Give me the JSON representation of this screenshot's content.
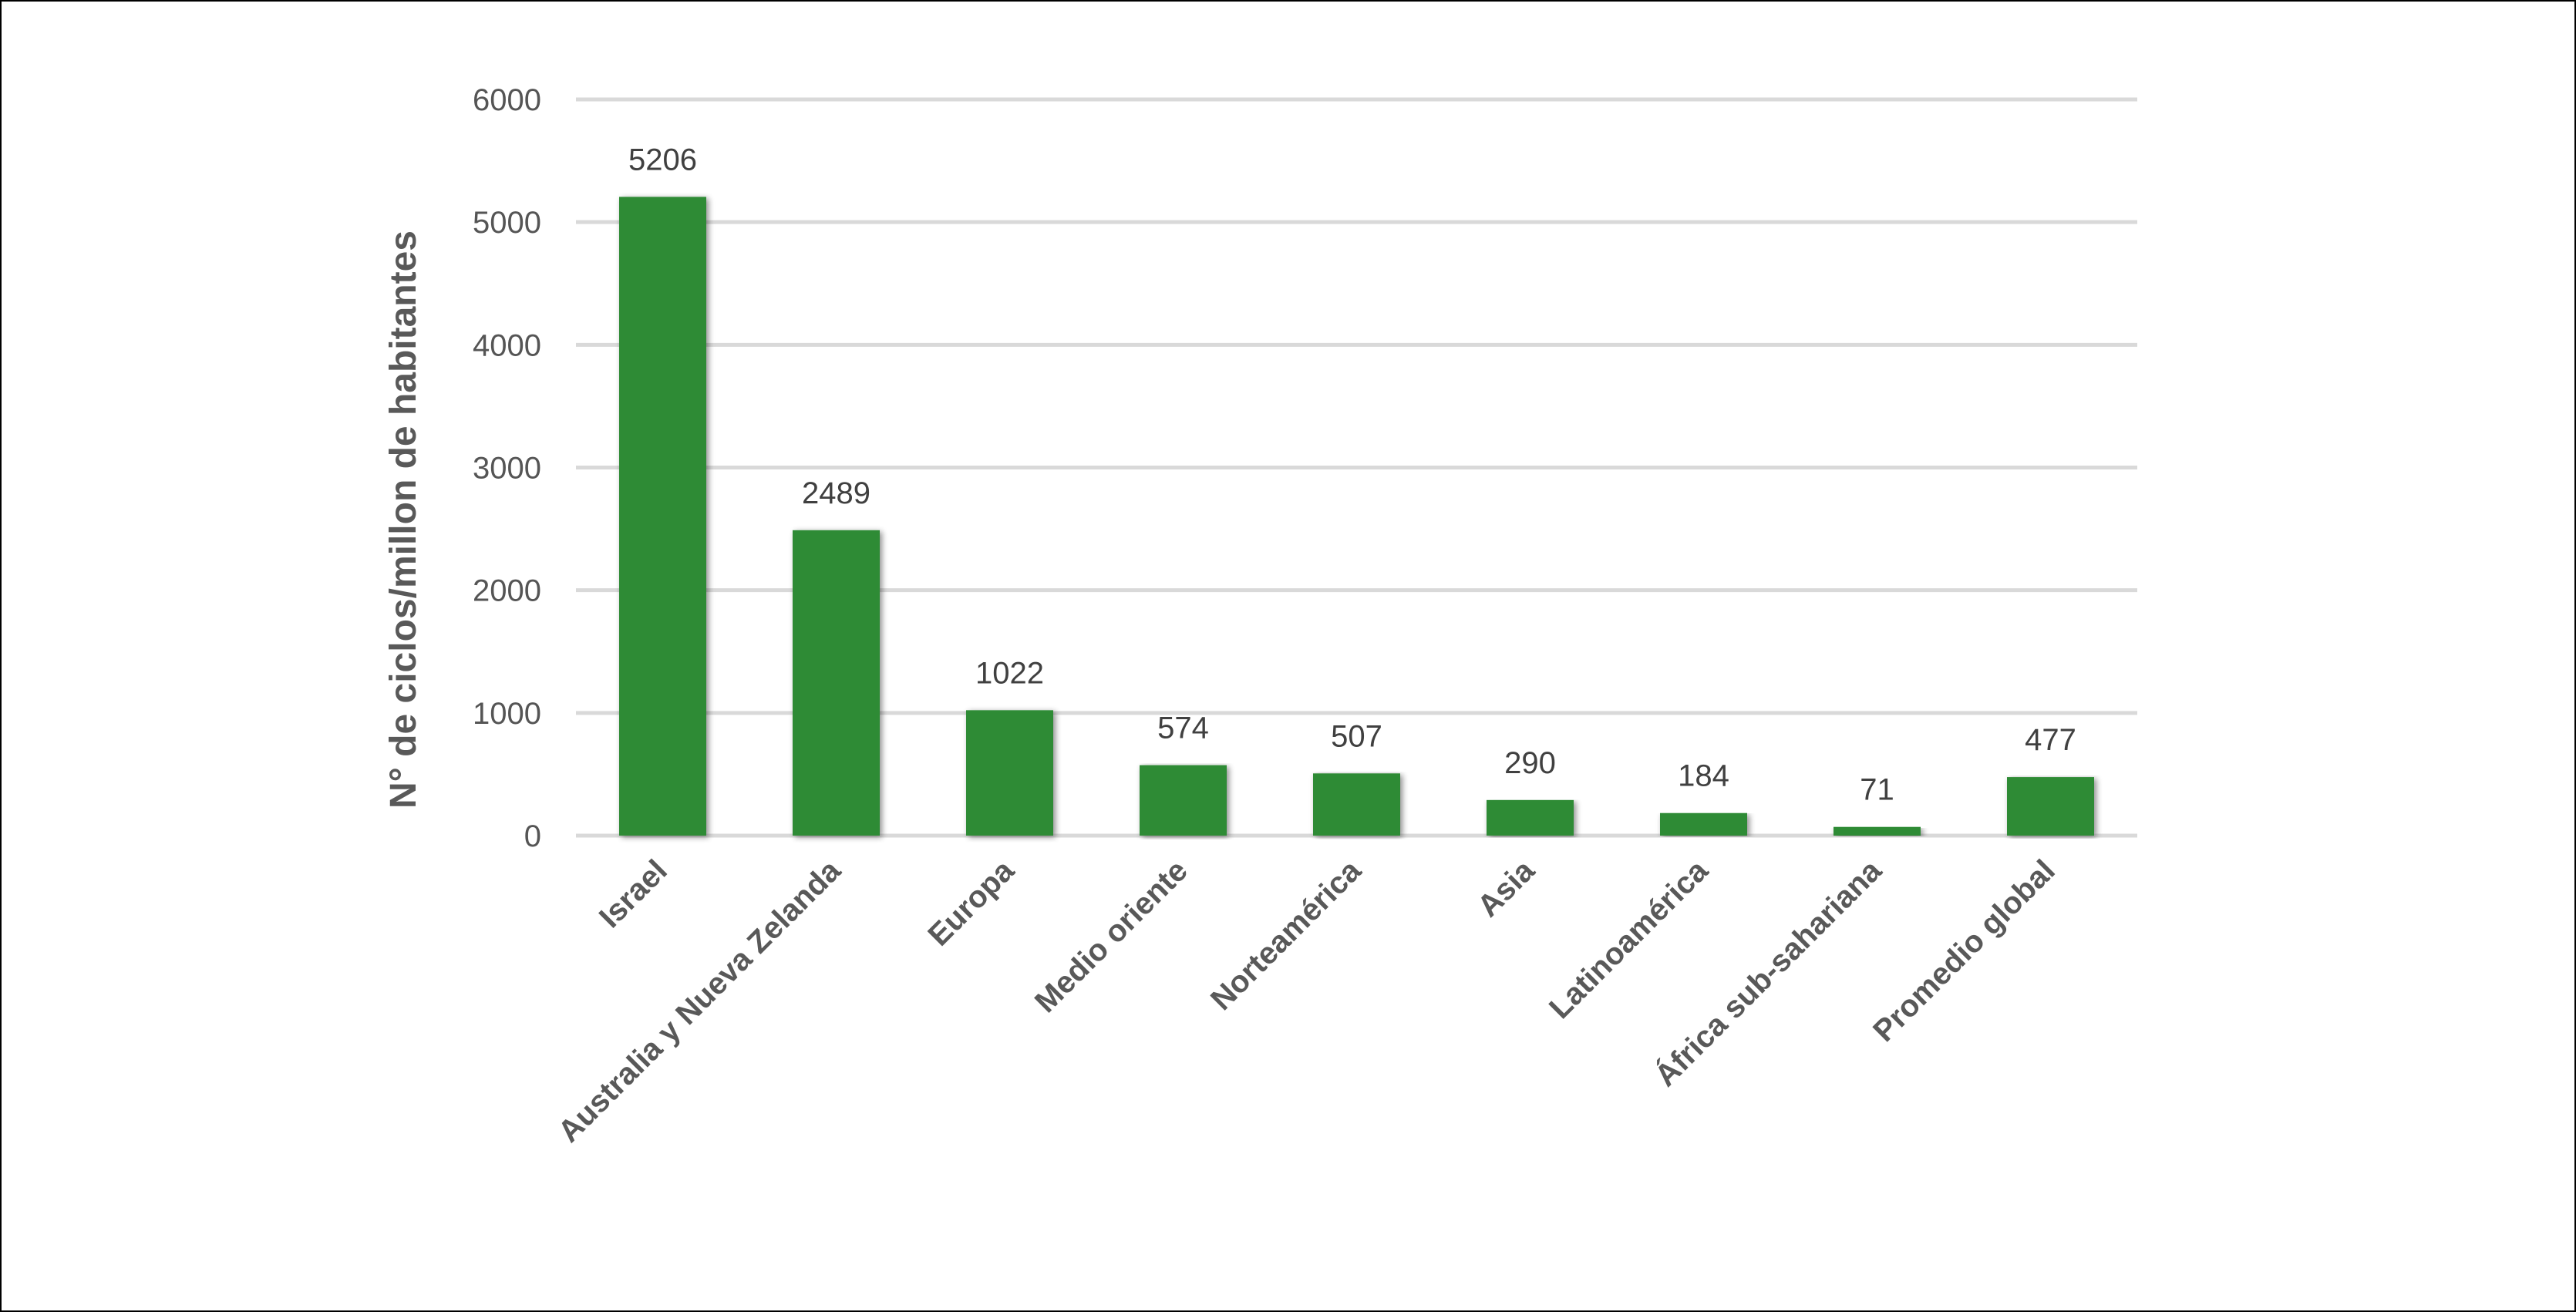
{
  "chart_data": {
    "type": "bar",
    "title": "",
    "xlabel": "",
    "ylabel": "N° de ciclos/millon de habitantes",
    "categories": [
      "Israel",
      "Australia y Nueva Zelanda",
      "Europa",
      "Medio oriente",
      "Norteamérica",
      "Asia",
      "Latinoamérica",
      "África sub-sahariana",
      "Promedio global"
    ],
    "values": [
      5206,
      2489,
      1022,
      574,
      507,
      290,
      184,
      71,
      477
    ],
    "data_labels": [
      "5206",
      "2489",
      "1022",
      "574",
      "507",
      "290",
      "184",
      "71",
      "477"
    ],
    "y_ticks": [
      "0",
      "1000",
      "2000",
      "3000",
      "4000",
      "5000",
      "6000"
    ],
    "ylim": [
      0,
      6000
    ],
    "grid": true,
    "legend": "none",
    "colors": {
      "bar": "#2e8b34",
      "grid": "#d9d9d9",
      "frame": "#000000"
    }
  }
}
